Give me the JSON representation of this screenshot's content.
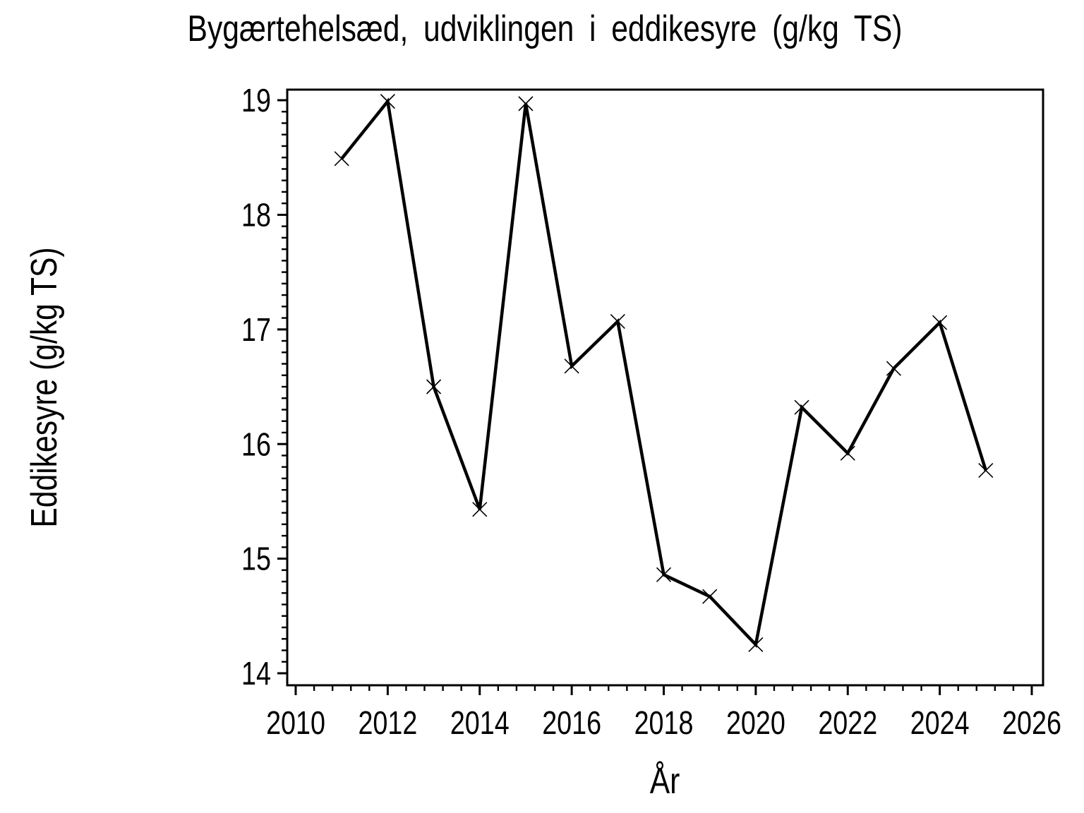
{
  "chart_data": {
    "type": "line",
    "title": "Bygærtehelsæd, udviklingen i eddikesyre (g/kg TS)",
    "xlabel": "År",
    "ylabel": "Eddikesyre (g/kg TS)",
    "x": [
      2011,
      2012,
      2013,
      2014,
      2015,
      2016,
      2017,
      2018,
      2019,
      2020,
      2021,
      2022,
      2023,
      2024,
      2025
    ],
    "values": [
      18.49,
      18.99,
      16.5,
      15.43,
      18.97,
      16.68,
      17.07,
      14.86,
      14.67,
      14.25,
      16.32,
      15.92,
      16.66,
      17.06,
      15.77
    ],
    "series_name": "Eddikesyre",
    "marker": "x",
    "xlim": [
      2010,
      2026
    ],
    "ylim": [
      14,
      19
    ],
    "x_major_ticks": [
      2010,
      2012,
      2014,
      2016,
      2018,
      2020,
      2022,
      2024,
      2026
    ],
    "x_tick_labels": [
      "2010",
      "2012",
      "2014",
      "2016",
      "2018",
      "2020",
      "2022",
      "2024",
      "2026"
    ],
    "x_minor_step": 0.4,
    "y_major_ticks": [
      14,
      15,
      16,
      17,
      18,
      19
    ],
    "y_tick_labels": [
      "14",
      "15",
      "16",
      "17",
      "18",
      "19"
    ],
    "y_minor_step": 0.1,
    "grid": "off",
    "legend": "none",
    "colors": {
      "line": "#000000",
      "marker": "#000000",
      "axis": "#000000",
      "background": "#ffffff"
    }
  }
}
